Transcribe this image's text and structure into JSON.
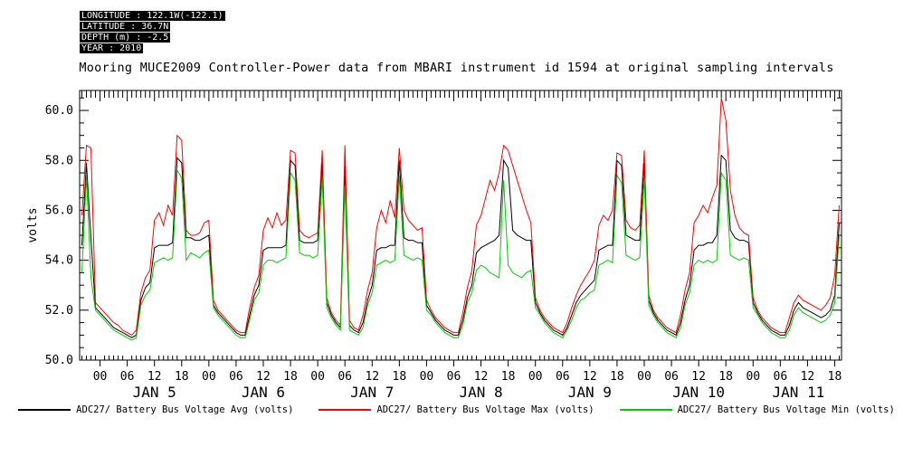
{
  "info_box": {
    "lines": [
      "LONGITUDE : 122.1W(-122.1)",
      "LATITUDE : 36.7N",
      "DEPTH (m) : -2.5",
      "YEAR : 2010"
    ]
  },
  "title": "Mooring MUCE2009 Controller-Power data from MBARI instrument id 1594 at original sampling intervals",
  "colors": {
    "background": "#ffffff",
    "axis": "#000000"
  },
  "chart_data": {
    "type": "line",
    "title": "Mooring MUCE2009 Controller-Power data from MBARI instrument id 1594 at original sampling intervals",
    "xlabel": "",
    "ylabel": "volts",
    "ylim": [
      50.0,
      60.8
    ],
    "yticks": [
      50.0,
      52.0,
      54.0,
      56.0,
      58.0,
      60.0
    ],
    "ytick_labels": [
      "50.0",
      "52.0",
      "54.0",
      "56.0",
      "58.0",
      "60.0"
    ],
    "y_minor_step": 0.5,
    "xlim_hours": [
      -4.5,
      163.5
    ],
    "x_major_step_hours": 6,
    "x_minor_step_hours": 1,
    "hour_tick_labels": [
      "00",
      "06",
      "12",
      "18"
    ],
    "day_labels": [
      {
        "label": "JAN 5",
        "t": 12
      },
      {
        "label": "JAN 6",
        "t": 36
      },
      {
        "label": "JAN 7",
        "t": 60
      },
      {
        "label": "JAN 8",
        "t": 84
      },
      {
        "label": "JAN 9",
        "t": 108
      },
      {
        "label": "JAN 10",
        "t": 132
      },
      {
        "label": "JAN 11",
        "t": 154
      }
    ],
    "grid": false,
    "legend_position": "bottom",
    "x_hours_start": -4,
    "x_hours_step": 1,
    "series": [
      {
        "name": "ADC27/ Battery Bus Voltage Avg (volts)",
        "color": "#000000",
        "values": [
          54.6,
          57.9,
          54.9,
          52.1,
          51.9,
          51.7,
          51.5,
          51.3,
          51.2,
          51.1,
          51.0,
          50.9,
          51.0,
          52.4,
          52.9,
          53.1,
          54.5,
          54.6,
          54.6,
          54.6,
          54.7,
          58.1,
          57.9,
          54.9,
          54.9,
          54.8,
          54.8,
          54.9,
          55.0,
          52.2,
          51.9,
          51.7,
          51.5,
          51.3,
          51.1,
          51.0,
          51.0,
          51.8,
          52.6,
          53.0,
          54.4,
          54.5,
          54.5,
          54.5,
          54.5,
          54.6,
          58.0,
          57.8,
          54.8,
          54.7,
          54.7,
          54.7,
          54.8,
          57.9,
          52.3,
          51.8,
          51.5,
          51.3,
          57.8,
          51.4,
          51.2,
          51.1,
          51.5,
          52.4,
          53.0,
          54.4,
          54.5,
          54.5,
          54.6,
          54.6,
          58.0,
          54.9,
          54.8,
          54.8,
          54.7,
          54.7,
          52.2,
          51.9,
          51.6,
          51.4,
          51.2,
          51.1,
          51.0,
          51.0,
          51.6,
          52.5,
          53.0,
          54.3,
          54.5,
          54.6,
          54.7,
          54.8,
          55.0,
          58.0,
          57.7,
          55.2,
          55.0,
          54.9,
          54.8,
          54.8,
          52.3,
          51.9,
          51.6,
          51.4,
          51.2,
          51.1,
          51.0,
          51.3,
          51.8,
          52.3,
          52.6,
          52.8,
          53.0,
          53.2,
          54.4,
          54.5,
          54.6,
          54.6,
          58.0,
          57.8,
          55.0,
          54.9,
          54.8,
          54.8,
          57.9,
          52.4,
          51.9,
          51.6,
          51.4,
          51.2,
          51.1,
          51.0,
          51.5,
          52.4,
          53.0,
          54.4,
          54.6,
          54.6,
          54.7,
          54.7,
          55.0,
          58.2,
          58.0,
          55.2,
          54.9,
          54.8,
          54.8,
          54.7,
          52.3,
          51.9,
          51.6,
          51.4,
          51.2,
          51.1,
          51.0,
          51.0,
          51.4,
          52.0,
          52.3,
          52.1,
          52.0,
          51.9,
          51.8,
          51.7,
          51.8,
          52.0,
          52.6,
          55.5
        ]
      },
      {
        "name": "ADC27/ Battery Bus Voltage Max (volts)",
        "color": "#ff0000",
        "values": [
          55.8,
          58.6,
          58.5,
          52.3,
          52.1,
          51.9,
          51.7,
          51.5,
          51.4,
          51.2,
          51.1,
          51.0,
          51.2,
          52.7,
          53.3,
          53.6,
          55.6,
          55.9,
          55.4,
          56.2,
          55.8,
          59.0,
          58.8,
          55.2,
          55.0,
          55.0,
          55.1,
          55.5,
          55.6,
          52.4,
          52.0,
          51.8,
          51.6,
          51.4,
          51.2,
          51.1,
          51.1,
          52.1,
          52.9,
          53.4,
          55.2,
          55.7,
          55.3,
          55.9,
          55.4,
          55.6,
          58.4,
          58.3,
          55.2,
          55.0,
          54.9,
          55.0,
          55.1,
          58.4,
          52.5,
          51.9,
          51.6,
          51.4,
          58.6,
          51.6,
          51.3,
          51.2,
          51.8,
          52.8,
          53.5,
          55.3,
          56.0,
          55.5,
          56.4,
          55.7,
          58.5,
          56.0,
          55.6,
          55.4,
          55.2,
          55.3,
          52.4,
          52.0,
          51.7,
          51.5,
          51.3,
          51.2,
          51.1,
          51.1,
          51.9,
          52.9,
          53.6,
          55.4,
          55.8,
          56.5,
          57.2,
          56.8,
          57.5,
          58.6,
          58.4,
          57.8,
          57.2,
          56.6,
          56.0,
          55.5,
          52.5,
          52.0,
          51.7,
          51.5,
          51.3,
          51.2,
          51.1,
          51.5,
          52.1,
          52.6,
          53.0,
          53.3,
          53.6,
          54.0,
          55.4,
          55.8,
          55.6,
          56.0,
          58.3,
          58.2,
          55.6,
          55.3,
          55.2,
          55.4,
          58.4,
          52.6,
          52.0,
          51.7,
          51.5,
          51.3,
          51.2,
          51.1,
          51.8,
          52.8,
          53.5,
          55.5,
          55.8,
          56.2,
          55.9,
          56.5,
          57.0,
          60.5,
          59.6,
          56.8,
          55.8,
          55.3,
          55.1,
          55.0,
          52.5,
          52.0,
          51.7,
          51.5,
          51.3,
          51.2,
          51.1,
          51.1,
          51.7,
          52.3,
          52.6,
          52.4,
          52.3,
          52.2,
          52.1,
          52.0,
          52.2,
          52.5,
          53.4,
          56.2
        ]
      },
      {
        "name": "ADC27/ Battery Bus Voltage Min (volts)",
        "color": "#00cc00",
        "values": [
          53.5,
          57.4,
          53.3,
          52.0,
          51.8,
          51.6,
          51.4,
          51.2,
          51.1,
          51.0,
          50.9,
          50.8,
          50.9,
          52.2,
          52.6,
          52.8,
          53.9,
          54.0,
          54.1,
          54.0,
          54.1,
          57.6,
          57.3,
          54.0,
          54.3,
          54.2,
          54.1,
          54.3,
          54.4,
          52.1,
          51.8,
          51.6,
          51.4,
          51.2,
          51.0,
          50.9,
          50.9,
          51.6,
          52.4,
          52.7,
          53.8,
          54.0,
          54.0,
          53.9,
          54.0,
          54.1,
          57.5,
          57.2,
          54.3,
          54.2,
          54.2,
          54.1,
          54.2,
          57.3,
          52.1,
          51.7,
          51.4,
          51.2,
          57.0,
          51.2,
          51.1,
          51.0,
          51.3,
          52.2,
          52.7,
          53.8,
          53.9,
          54.0,
          53.9,
          54.0,
          57.4,
          54.2,
          54.1,
          54.0,
          54.1,
          54.0,
          52.0,
          51.8,
          51.5,
          51.3,
          51.1,
          51.0,
          50.9,
          50.9,
          51.4,
          52.3,
          52.7,
          53.6,
          53.8,
          53.7,
          53.5,
          53.4,
          53.3,
          57.2,
          53.8,
          53.5,
          53.4,
          53.3,
          53.5,
          53.6,
          52.1,
          51.8,
          51.5,
          51.3,
          51.1,
          51.0,
          50.9,
          51.2,
          51.6,
          52.1,
          52.4,
          52.5,
          52.7,
          52.8,
          53.8,
          53.9,
          54.0,
          53.9,
          57.4,
          57.1,
          54.2,
          54.1,
          54.0,
          54.1,
          57.3,
          52.2,
          51.8,
          51.5,
          51.3,
          51.1,
          51.0,
          50.9,
          51.3,
          52.2,
          52.7,
          53.8,
          54.0,
          53.9,
          54.0,
          53.9,
          54.0,
          57.5,
          57.2,
          54.2,
          54.1,
          54.0,
          54.1,
          54.0,
          52.1,
          51.8,
          51.5,
          51.3,
          51.1,
          51.0,
          50.9,
          50.9,
          51.2,
          51.8,
          52.1,
          51.9,
          51.8,
          51.7,
          51.6,
          51.5,
          51.6,
          51.8,
          52.3,
          55.0
        ]
      }
    ]
  }
}
